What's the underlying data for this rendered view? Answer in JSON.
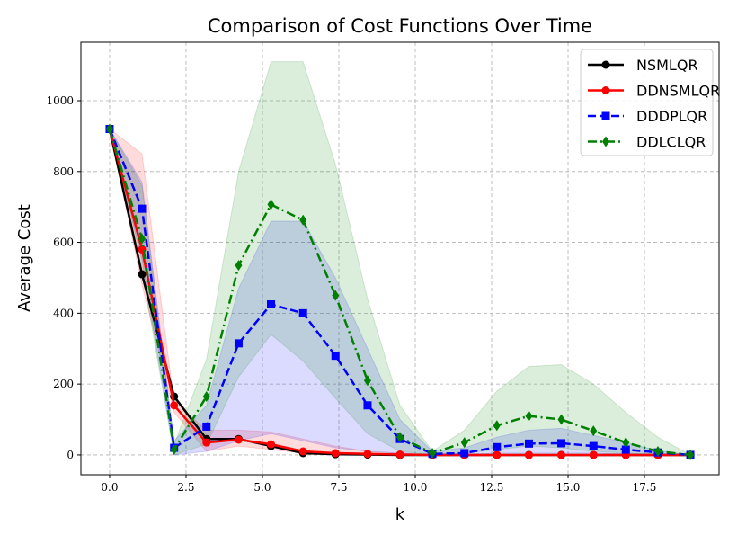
{
  "chart_data": {
    "type": "line",
    "title": "Comparison of Cost Functions Over Time",
    "xlabel": "k",
    "ylabel": "Average Cost",
    "xlim": [
      -0.94,
      19.94
    ],
    "ylim": [
      -56,
      1165
    ],
    "xticks": [
      0,
      2.5,
      5,
      7.5,
      10,
      12.5,
      15,
      17.5
    ],
    "xtick_labels": [
      "0.0",
      "2.5",
      "5.0",
      "7.5",
      "10.0",
      "12.5",
      "15.0",
      "17.5"
    ],
    "yticks": [
      0,
      200,
      400,
      600,
      800,
      1000
    ],
    "ytick_labels": [
      "0",
      "200",
      "400",
      "600",
      "800",
      "1000"
    ],
    "grid": true,
    "legend_position": "top-right",
    "x": [
      0,
      1.06,
      2.11,
      3.17,
      4.22,
      5.28,
      6.33,
      7.39,
      8.44,
      9.5,
      10.56,
      11.61,
      12.67,
      13.72,
      14.78,
      15.83,
      16.89,
      17.94,
      19
    ],
    "series": [
      {
        "name": "NSMLQR",
        "color": "#000000",
        "dash": "solid",
        "marker": "circle",
        "values": [
          920,
          510,
          165,
          45,
          45,
          25,
          5,
          2,
          1,
          0,
          0,
          0,
          0,
          0,
          0,
          0,
          0,
          0,
          0
        ]
      },
      {
        "name": "DDNSMLQR",
        "color": "#ff0000",
        "dash": "solid",
        "marker": "circle",
        "values": [
          920,
          580,
          140,
          35,
          43,
          30,
          10,
          5,
          3,
          1,
          0,
          0,
          0,
          0,
          0,
          0,
          0,
          0,
          0
        ],
        "band_upper": [
          920,
          850,
          150,
          70,
          70,
          65,
          45,
          25,
          10,
          5,
          2,
          1,
          1,
          1,
          1,
          1,
          1,
          1,
          0
        ],
        "band_lower": [
          920,
          480,
          120,
          10,
          25,
          15,
          5,
          0,
          0,
          0,
          0,
          0,
          0,
          0,
          0,
          0,
          0,
          0,
          0
        ]
      },
      {
        "name": "DDDPLQR",
        "color": "#0000ff",
        "dash": "dashed",
        "marker": "square",
        "values": [
          920,
          695,
          20,
          80,
          315,
          425,
          400,
          280,
          140,
          45,
          3,
          5,
          22,
          32,
          33,
          25,
          15,
          7,
          0
        ],
        "band_upper": [
          920,
          770,
          40,
          140,
          470,
          660,
          660,
          500,
          300,
          100,
          10,
          20,
          50,
          70,
          75,
          55,
          35,
          12,
          0
        ],
        "band_lower": [
          920,
          550,
          0,
          10,
          40,
          60,
          40,
          20,
          10,
          5,
          0,
          0,
          5,
          5,
          5,
          5,
          2,
          0,
          0
        ]
      },
      {
        "name": "DDLCLQR",
        "color": "#008000",
        "dash": "dashdot",
        "marker": "diamond",
        "values": [
          920,
          610,
          15,
          165,
          535,
          707,
          663,
          450,
          210,
          50,
          5,
          35,
          83,
          110,
          100,
          68,
          35,
          10,
          0
        ],
        "band_upper": [
          920,
          760,
          30,
          270,
          800,
          1110,
          1110,
          820,
          440,
          140,
          10,
          70,
          180,
          250,
          255,
          200,
          120,
          50,
          0
        ],
        "band_lower": [
          920,
          520,
          0,
          30,
          220,
          340,
          265,
          160,
          60,
          10,
          0,
          5,
          15,
          25,
          20,
          10,
          5,
          0,
          0
        ]
      }
    ]
  }
}
